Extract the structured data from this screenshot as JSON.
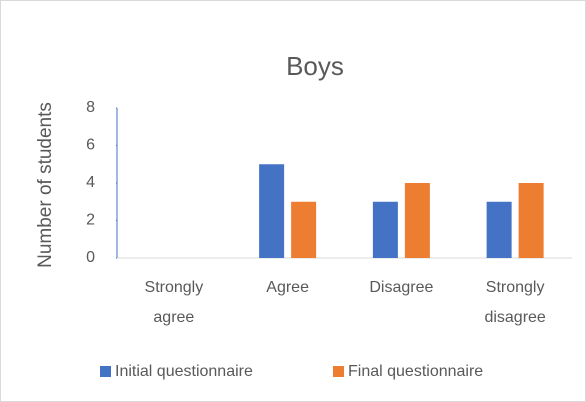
{
  "chart_data": {
    "type": "bar",
    "title": "Boys",
    "y_label": "Number of students",
    "categories": [
      "Strongly agree",
      "Agree",
      "Disagree",
      "Strongly disagree"
    ],
    "series": [
      {
        "name": "Initial questionnaire",
        "color": "#4472c4",
        "values": [
          0,
          5,
          3,
          3
        ]
      },
      {
        "name": "Final questionnaire",
        "color": "#ed7d31",
        "values": [
          0,
          3,
          4,
          4
        ]
      }
    ],
    "ylim": [
      0,
      8
    ],
    "yticks": [
      0,
      2,
      4,
      6,
      8
    ],
    "grid": false,
    "legend": "bottom"
  }
}
